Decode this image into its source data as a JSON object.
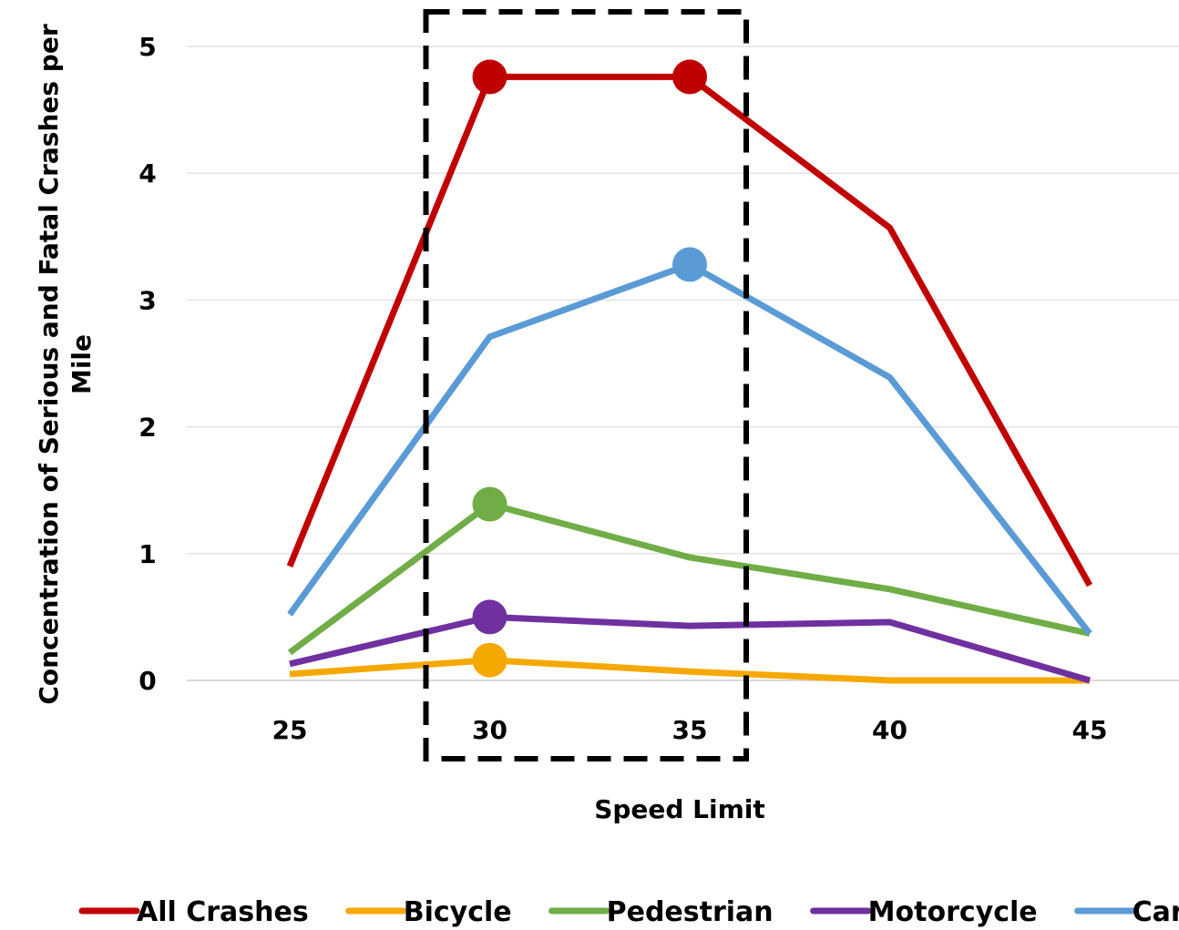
{
  "chart_data": {
    "type": "line",
    "xlabel": "Speed Limit",
    "ylabel": "Concentration of Serious and Fatal Crashes per Mile",
    "categories": [
      "25",
      "30",
      "35",
      "40",
      "45"
    ],
    "ylim": [
      0,
      5
    ],
    "yticks": [
      "0",
      "1",
      "2",
      "3",
      "4",
      "5"
    ],
    "grid": true,
    "legend_position": "bottom",
    "highlight_box": {
      "from_category": "30",
      "to_category": "35",
      "style": "dashed"
    },
    "series": [
      {
        "name": "All Crashes",
        "color": "#C00000",
        "values": [
          0.9,
          4.76,
          4.76,
          3.57,
          0.75
        ],
        "markers": [
          false,
          true,
          true,
          false,
          false
        ]
      },
      {
        "name": "Bicycle",
        "color": "#F5A800",
        "values": [
          0.05,
          0.16,
          0.07,
          0.0,
          0.0
        ],
        "markers": [
          false,
          true,
          false,
          false,
          false
        ]
      },
      {
        "name": "Pedestrian",
        "color": "#70AD47",
        "values": [
          0.22,
          1.39,
          0.97,
          0.72,
          0.37
        ],
        "markers": [
          false,
          true,
          false,
          false,
          false
        ]
      },
      {
        "name": "Motorcycle",
        "color": "#7030A0",
        "values": [
          0.13,
          0.5,
          0.43,
          0.46,
          0.0
        ],
        "markers": [
          false,
          true,
          false,
          false,
          false
        ]
      },
      {
        "name": "Car",
        "color": "#5B9BD5",
        "values": [
          0.52,
          2.71,
          3.28,
          2.39,
          0.37
        ],
        "markers": [
          false,
          false,
          true,
          false,
          false
        ]
      }
    ]
  }
}
